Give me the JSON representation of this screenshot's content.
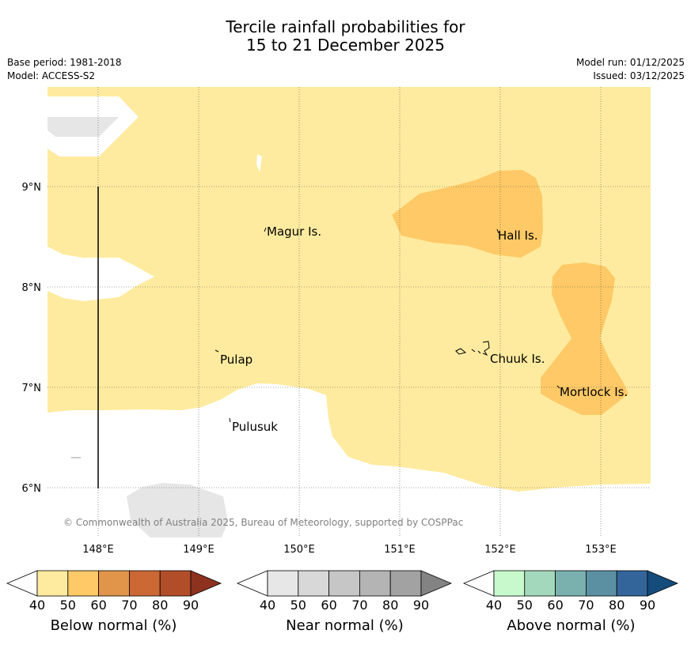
{
  "title": {
    "line1": "Tercile rainfall probabilities for",
    "line2": "15 to 21 December 2025"
  },
  "meta": {
    "base_period": "Base period: 1981-2018",
    "model": "Model: ACCESS-S2",
    "model_run": "Model run: 01/12/2025",
    "issued": "Issued: 03/12/2025"
  },
  "map": {
    "lon_labels": [
      "148°E",
      "149°E",
      "150°E",
      "151°E",
      "152°E",
      "153°E"
    ],
    "lat_labels": [
      "9°N",
      "8°N",
      "7°N",
      "6°N"
    ],
    "places": {
      "magur": "Magur Is.",
      "hall": "Hall Is.",
      "pulap": "Pulap",
      "chuuk": "Chuuk Is.",
      "mortlock": "Mortlock Is.",
      "pulusuk": "Pulusuk"
    },
    "copyright": "© Commonwealth of Australia 2025, Bureau of Meteorology, supported by COSPPac",
    "colors": {
      "below_50": "#ffeb9f",
      "below_60": "#fec966",
      "near_40": "#e6e6e6"
    }
  },
  "colorbars": [
    {
      "name": "below",
      "label": "Below normal (%)",
      "ticks": [
        "40",
        "50",
        "60",
        "70",
        "80",
        "90"
      ],
      "colors": [
        "#ffffff",
        "#ffeb9f",
        "#fec966",
        "#e0954a",
        "#cb6834",
        "#b24d2a",
        "#8e3220"
      ]
    },
    {
      "name": "near",
      "label": "Near normal (%)",
      "ticks": [
        "40",
        "50",
        "60",
        "70",
        "80",
        "90"
      ],
      "colors": [
        "#ffffff",
        "#e7e7e7",
        "#d8d8d8",
        "#c6c6c6",
        "#b4b4b4",
        "#a2a2a2",
        "#838383"
      ]
    },
    {
      "name": "above",
      "label": "Above normal (%)",
      "ticks": [
        "40",
        "50",
        "60",
        "70",
        "80",
        "90"
      ],
      "colors": [
        "#ffffff",
        "#c8f9cc",
        "#a3d8bc",
        "#7ab1ae",
        "#5b90a2",
        "#33659a",
        "#144c7b"
      ]
    }
  ]
}
